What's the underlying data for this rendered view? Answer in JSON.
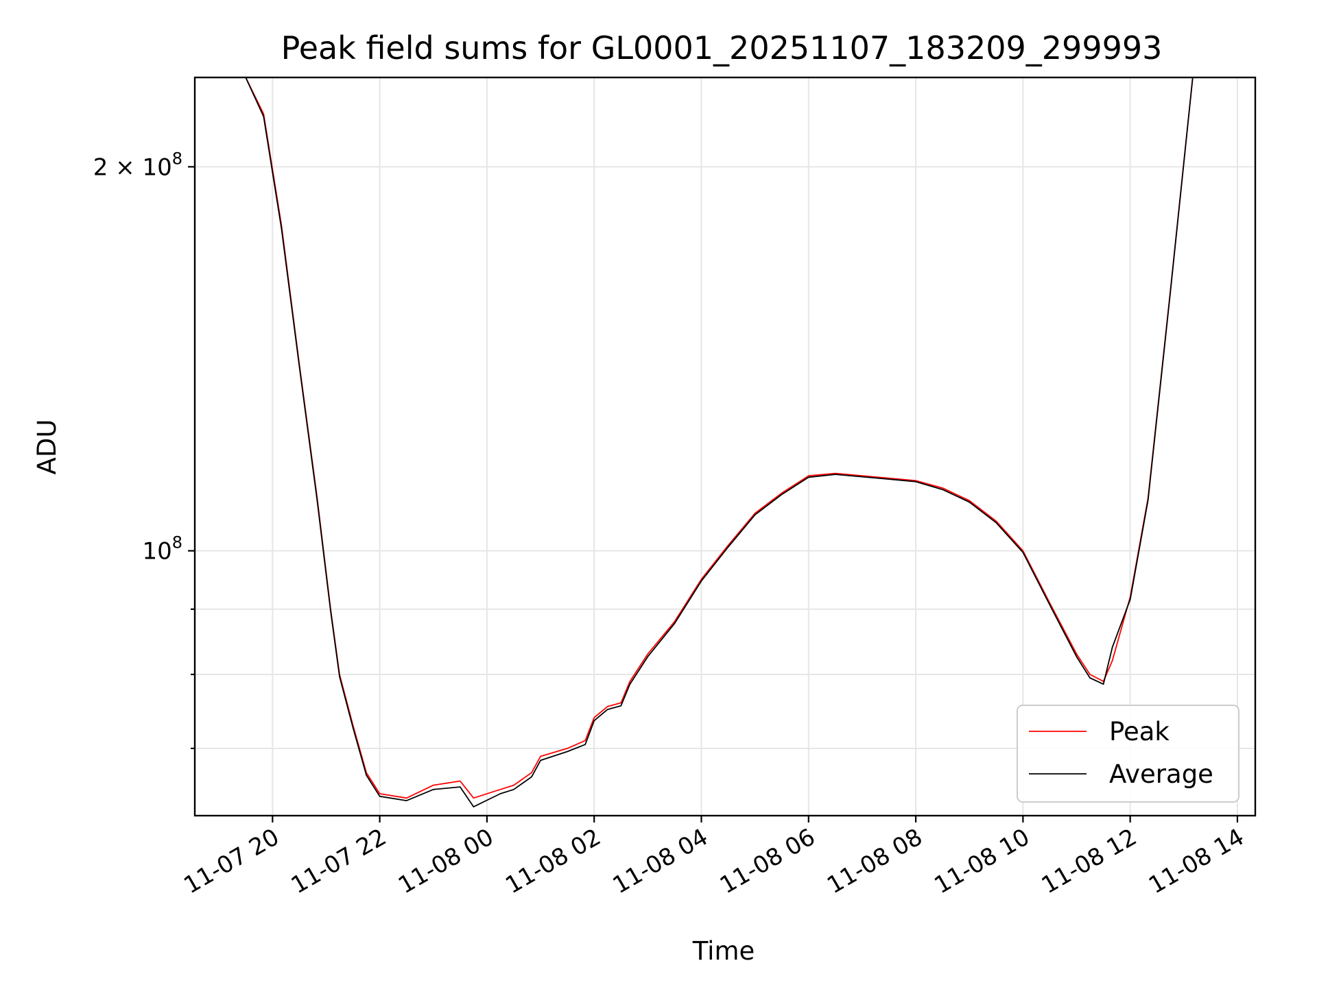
{
  "chart_data": {
    "type": "line",
    "title": "Peak field sums for GL0001_20251107_183209_299993",
    "xlabel": "Time",
    "ylabel": "ADU",
    "yscale": "log",
    "ylim": [
      62000000,
      235000000
    ],
    "xlim": [
      "2025-11-07 18:33",
      "2025-11-08 14:20"
    ],
    "grid": true,
    "legend_position": "lower right",
    "x_ticks": [
      {
        "t": "2025-11-07 20:00",
        "label": "11-07 20"
      },
      {
        "t": "2025-11-07 22:00",
        "label": "11-07 22"
      },
      {
        "t": "2025-11-08 00:00",
        "label": "11-08 00"
      },
      {
        "t": "2025-11-08 02:00",
        "label": "11-08 02"
      },
      {
        "t": "2025-11-08 04:00",
        "label": "11-08 04"
      },
      {
        "t": "2025-11-08 06:00",
        "label": "11-08 06"
      },
      {
        "t": "2025-11-08 08:00",
        "label": "11-08 08"
      },
      {
        "t": "2025-11-08 10:00",
        "label": "11-08 10"
      },
      {
        "t": "2025-11-08 12:00",
        "label": "11-08 12"
      },
      {
        "t": "2025-11-08 14:00",
        "label": "11-08 14"
      }
    ],
    "y_ticks_major": [
      {
        "v": 100000000,
        "label_base": "10",
        "label_exp": "8"
      },
      {
        "v": 200000000,
        "label_base": "2 × 10",
        "label_exp": "8"
      }
    ],
    "y_ticks_minor": [
      70000000,
      80000000,
      90000000
    ],
    "series": [
      {
        "name": "Peak",
        "color": "#ff0000",
        "x": [
          "2025-11-07 18:33",
          "2025-11-07 19:30",
          "2025-11-07 19:50",
          "2025-11-07 20:10",
          "2025-11-07 20:30",
          "2025-11-07 20:50",
          "2025-11-07 21:05",
          "2025-11-07 21:15",
          "2025-11-07 21:30",
          "2025-11-07 21:45",
          "2025-11-07 22:00",
          "2025-11-07 22:30",
          "2025-11-07 23:00",
          "2025-11-07 23:30",
          "2025-11-07 23:45",
          "2025-11-08 00:15",
          "2025-11-08 00:30",
          "2025-11-08 00:50",
          "2025-11-08 01:00",
          "2025-11-08 01:30",
          "2025-11-08 01:50",
          "2025-11-08 02:00",
          "2025-11-08 02:15",
          "2025-11-08 02:30",
          "2025-11-08 02:40",
          "2025-11-08 03:00",
          "2025-11-08 03:30",
          "2025-11-08 04:00",
          "2025-11-08 04:30",
          "2025-11-08 05:00",
          "2025-11-08 05:30",
          "2025-11-08 06:00",
          "2025-11-08 06:30",
          "2025-11-08 07:00",
          "2025-11-08 07:30",
          "2025-11-08 08:00",
          "2025-11-08 08:30",
          "2025-11-08 09:00",
          "2025-11-08 09:30",
          "2025-11-08 10:00",
          "2025-11-08 10:30",
          "2025-11-08 11:00",
          "2025-11-08 11:15",
          "2025-11-08 11:30",
          "2025-11-08 11:40",
          "2025-11-08 12:00",
          "2025-11-08 12:20",
          "2025-11-08 12:45",
          "2025-11-08 13:10",
          "2025-11-08 14:20"
        ],
        "y": [
          235000000,
          235000000,
          220000000,
          180000000,
          140000000,
          110000000,
          90000000,
          80000000,
          73000000,
          67000000,
          64500000,
          64000000,
          65500000,
          66000000,
          64000000,
          65000000,
          65500000,
          67000000,
          69000000,
          70000000,
          71000000,
          74000000,
          75500000,
          76000000,
          79000000,
          83000000,
          88000000,
          95000000,
          101000000,
          107000000,
          111000000,
          114500000,
          115000000,
          114500000,
          114000000,
          113500000,
          112000000,
          109500000,
          105500000,
          100000000,
          91000000,
          83000000,
          80000000,
          79000000,
          82000000,
          92000000,
          110000000,
          160000000,
          235000000,
          235000000
        ]
      },
      {
        "name": "Average",
        "color": "#000000",
        "x": [
          "2025-11-07 18:33",
          "2025-11-07 19:30",
          "2025-11-07 19:50",
          "2025-11-07 20:10",
          "2025-11-07 20:30",
          "2025-11-07 20:50",
          "2025-11-07 21:05",
          "2025-11-07 21:15",
          "2025-11-07 21:30",
          "2025-11-07 21:45",
          "2025-11-07 22:00",
          "2025-11-07 22:30",
          "2025-11-07 23:00",
          "2025-11-07 23:30",
          "2025-11-07 23:45",
          "2025-11-08 00:15",
          "2025-11-08 00:30",
          "2025-11-08 00:50",
          "2025-11-08 01:00",
          "2025-11-08 01:30",
          "2025-11-08 01:50",
          "2025-11-08 02:00",
          "2025-11-08 02:15",
          "2025-11-08 02:30",
          "2025-11-08 02:40",
          "2025-11-08 03:00",
          "2025-11-08 03:30",
          "2025-11-08 04:00",
          "2025-11-08 04:30",
          "2025-11-08 05:00",
          "2025-11-08 05:30",
          "2025-11-08 06:00",
          "2025-11-08 06:30",
          "2025-11-08 07:00",
          "2025-11-08 07:30",
          "2025-11-08 08:00",
          "2025-11-08 08:30",
          "2025-11-08 09:00",
          "2025-11-08 09:30",
          "2025-11-08 10:00",
          "2025-11-08 10:30",
          "2025-11-08 11:00",
          "2025-11-08 11:15",
          "2025-11-08 11:30",
          "2025-11-08 11:40",
          "2025-11-08 12:00",
          "2025-11-08 12:20",
          "2025-11-08 12:45",
          "2025-11-08 13:10",
          "2025-11-08 14:20"
        ],
        "y": [
          235000000,
          235000000,
          219000000,
          179000000,
          139500000,
          109500000,
          89700000,
          79700000,
          72700000,
          66700000,
          64200000,
          63700000,
          65000000,
          65300000,
          63000000,
          64500000,
          65000000,
          66500000,
          68500000,
          69600000,
          70500000,
          73600000,
          75100000,
          75600000,
          78600000,
          82600000,
          87700000,
          94700000,
          100700000,
          106700000,
          110700000,
          114200000,
          114800000,
          114300000,
          113800000,
          113300000,
          111700000,
          109200000,
          105200000,
          99700000,
          90700000,
          82600000,
          79500000,
          78600000,
          84000000,
          91600000,
          109600000,
          159600000,
          235000000,
          235000000
        ]
      }
    ]
  }
}
